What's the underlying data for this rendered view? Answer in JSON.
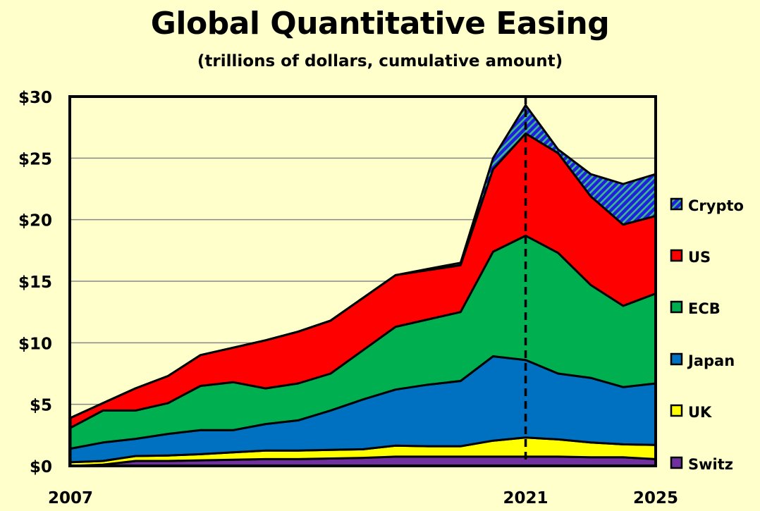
{
  "chart_data": {
    "type": "area",
    "stacked": true,
    "title": "Global Quantitative Easing",
    "subtitle": "(trillions of dollars, cumulative amount)",
    "xlabel": "",
    "ylabel": "",
    "x": [
      2007,
      2008,
      2009,
      2010,
      2011,
      2012,
      2013,
      2014,
      2015,
      2016,
      2017,
      2018,
      2019,
      2020,
      2021,
      2022,
      2023,
      2024,
      2025
    ],
    "x_tick_labels": [
      "2007",
      "2021",
      "2025"
    ],
    "x_ticks": [
      2007,
      2021,
      2025
    ],
    "ylim": [
      0,
      30
    ],
    "y_ticks": [
      0,
      5,
      10,
      15,
      20,
      25,
      30
    ],
    "y_tick_labels": [
      "$0",
      "$5",
      "$10",
      "$15",
      "$20",
      "$25",
      "$30"
    ],
    "grid": "horizontal",
    "reference_line": {
      "x": 2021,
      "style": "dashed"
    },
    "legend_position": "right",
    "series": [
      {
        "name": "Switz",
        "color": "#7030a0",
        "values": [
          0.0,
          0.1,
          0.4,
          0.4,
          0.45,
          0.5,
          0.55,
          0.55,
          0.6,
          0.65,
          0.75,
          0.75,
          0.75,
          0.75,
          0.75,
          0.75,
          0.7,
          0.7,
          0.55
        ]
      },
      {
        "name": "UK",
        "color": "#ffff00",
        "values": [
          0.3,
          0.3,
          0.4,
          0.45,
          0.5,
          0.6,
          0.7,
          0.7,
          0.7,
          0.7,
          0.9,
          0.85,
          0.85,
          1.3,
          1.55,
          1.4,
          1.2,
          1.05,
          1.15
        ]
      },
      {
        "name": "Japan",
        "color": "#0070c0",
        "values": [
          1.1,
          1.5,
          1.4,
          1.75,
          1.95,
          1.8,
          2.15,
          2.45,
          3.2,
          4.05,
          4.55,
          5.0,
          5.3,
          6.85,
          6.3,
          5.35,
          5.25,
          4.65,
          5.0
        ]
      },
      {
        "name": "ECB",
        "color": "#00b050",
        "values": [
          1.7,
          2.6,
          2.3,
          2.5,
          3.6,
          3.9,
          2.9,
          3.0,
          3.0,
          4.0,
          5.1,
          5.3,
          5.6,
          8.5,
          10.1,
          9.8,
          7.55,
          6.6,
          7.3
        ]
      },
      {
        "name": "US",
        "color": "#ff0000",
        "values": [
          0.8,
          0.6,
          1.8,
          2.2,
          2.5,
          2.8,
          3.9,
          4.2,
          4.3,
          4.25,
          4.2,
          4.0,
          3.8,
          6.7,
          8.3,
          8.1,
          7.2,
          6.6,
          6.3
        ]
      },
      {
        "name": "Crypto",
        "color": "#1f1fe0",
        "hatch_color": "#3cb88c",
        "pattern": "diagonal-hatch",
        "values": [
          0,
          0,
          0,
          0,
          0,
          0,
          0,
          0,
          0,
          0,
          0,
          0.1,
          0.2,
          0.9,
          2.3,
          0.3,
          1.8,
          3.3,
          3.4
        ]
      }
    ],
    "legend_order": [
      "Crypto",
      "US",
      "ECB",
      "Japan",
      "UK",
      "Switz"
    ]
  }
}
